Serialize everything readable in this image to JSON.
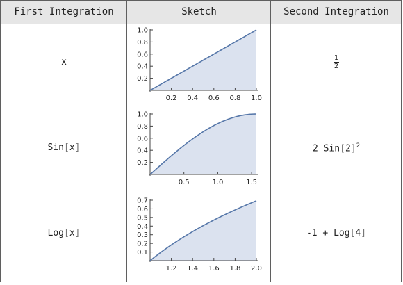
{
  "header": {
    "col1": "First Integration",
    "col2": "Sketch",
    "col3": "Second Integration"
  },
  "rows": [
    {
      "first": "x",
      "second_num": "1",
      "second_den": "2"
    },
    {
      "first_fn": "Sin",
      "first_arg": "x",
      "second_coef": "2",
      "second_fn": "Sin",
      "second_arg": "2",
      "second_exp": "2"
    },
    {
      "first_fn": "Log",
      "first_arg": "x",
      "second_pre": "-1 + ",
      "second_fn": "Log",
      "second_arg": "4"
    }
  ],
  "colors": {
    "line": "#5677a9",
    "fill": "#dbe2ef",
    "border": "#5f5f5f",
    "header_bg": "#e6e6e6"
  },
  "chart_data": [
    {
      "type": "area",
      "function": "x",
      "x": [
        0,
        0.2,
        0.4,
        0.6,
        0.8,
        1.0
      ],
      "y": [
        0,
        0.2,
        0.4,
        0.6,
        0.8,
        1.0
      ],
      "xlim": [
        0,
        1.0
      ],
      "ylim": [
        0,
        1.0
      ],
      "xticks": [
        0.2,
        0.4,
        0.6,
        0.8,
        1.0
      ],
      "yticks": [
        0.2,
        0.4,
        0.6,
        0.8,
        1.0
      ],
      "xtick_labels": [
        "0.2",
        "0.4",
        "0.6",
        "0.8",
        "1.0"
      ],
      "ytick_labels": [
        "0.2",
        "0.4",
        "0.6",
        "0.8",
        "1.0"
      ]
    },
    {
      "type": "area",
      "function": "sin(x)",
      "x": [
        0,
        0.25,
        0.5,
        0.75,
        1.0,
        1.25,
        1.5708
      ],
      "y": [
        0,
        0.247,
        0.479,
        0.682,
        0.841,
        0.949,
        1.0
      ],
      "xlim": [
        0,
        1.5708
      ],
      "ylim": [
        0,
        1.0
      ],
      "xticks": [
        0.5,
        1.0,
        1.5
      ],
      "yticks": [
        0.2,
        0.4,
        0.6,
        0.8,
        1.0
      ],
      "xtick_labels": [
        "0.5",
        "1.0",
        "1.5"
      ],
      "ytick_labels": [
        "0.2",
        "0.4",
        "0.6",
        "0.8",
        "1.0"
      ]
    },
    {
      "type": "area",
      "function": "log(x)",
      "x": [
        1.0,
        1.2,
        1.4,
        1.6,
        1.8,
        2.0
      ],
      "y": [
        0,
        0.182,
        0.336,
        0.47,
        0.588,
        0.693
      ],
      "xlim": [
        1.0,
        2.0
      ],
      "ylim": [
        0,
        0.7
      ],
      "xticks": [
        1.2,
        1.4,
        1.6,
        1.8,
        2.0
      ],
      "yticks": [
        0.1,
        0.2,
        0.3,
        0.4,
        0.5,
        0.6,
        0.7
      ],
      "xtick_labels": [
        "1.2",
        "1.4",
        "1.6",
        "1.8",
        "2.0"
      ],
      "ytick_labels": [
        "0.1",
        "0.2",
        "0.3",
        "0.4",
        "0.5",
        "0.6",
        "0.7"
      ]
    }
  ]
}
